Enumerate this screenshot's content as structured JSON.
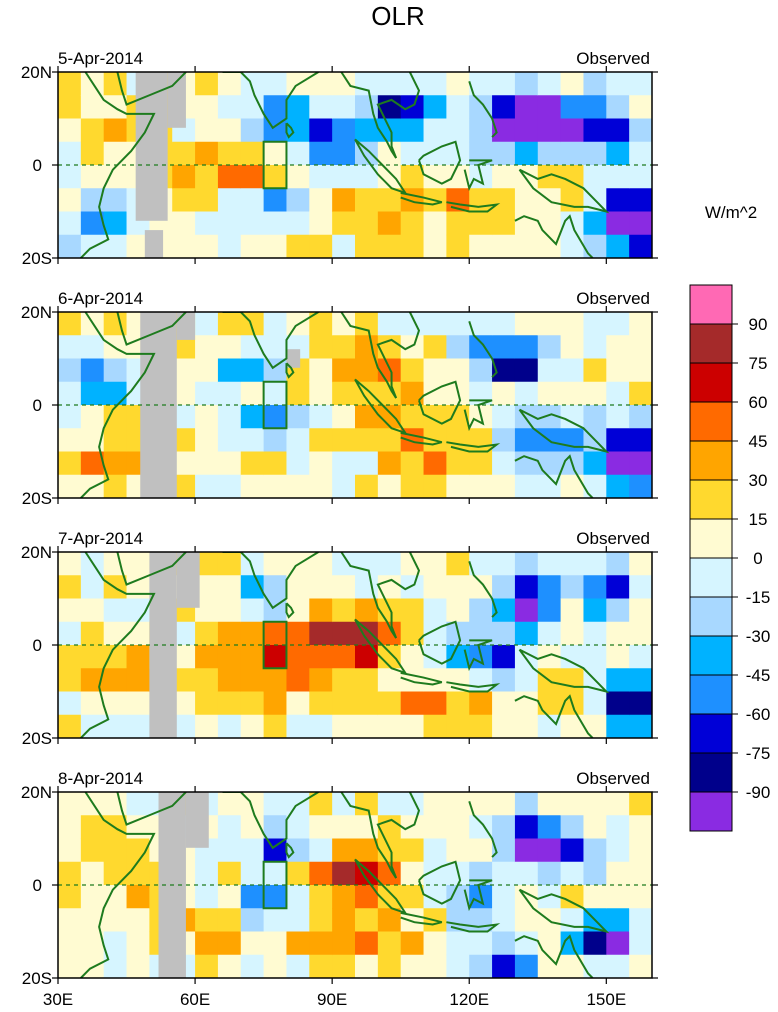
{
  "chart_data": {
    "type": "heatmap",
    "title": "OLR",
    "variable_unit": "W/m^2",
    "x_axis": {
      "ticks": [
        30,
        60,
        90,
        120,
        150
      ],
      "tick_labels": [
        "30E",
        "60E",
        "90E",
        "120E",
        "150E"
      ],
      "range": [
        30,
        160
      ]
    },
    "y_axis": {
      "ticks": [
        20,
        0,
        -20
      ],
      "tick_labels": [
        "20N",
        "0",
        "20S"
      ],
      "range": [
        -20,
        20
      ]
    },
    "colorbar": {
      "levels": [
        90,
        75,
        60,
        45,
        30,
        15,
        0,
        -15,
        -30,
        -45,
        -60,
        -75,
        -90
      ],
      "colors": [
        "#ff69b4",
        "#a52a2a",
        "#cc0000",
        "#ff6a00",
        "#ffa500",
        "#ffd92e",
        "#fffbd2",
        "#d6f5ff",
        "#a8d8ff",
        "#00b2ff",
        "#1e90ff",
        "#0000d7",
        "#00008b",
        "#8a2be2"
      ]
    },
    "reference_box": {
      "lon": [
        75,
        80
      ],
      "lat": [
        -5,
        5
      ]
    },
    "panels": [
      {
        "date": "5-Apr-2014",
        "label": "Observed"
      },
      {
        "date": "6-Apr-2014",
        "label": "Observed"
      },
      {
        "date": "7-Apr-2014",
        "label": "Observed"
      },
      {
        "date": "8-Apr-2014",
        "label": "Observed"
      }
    ]
  }
}
